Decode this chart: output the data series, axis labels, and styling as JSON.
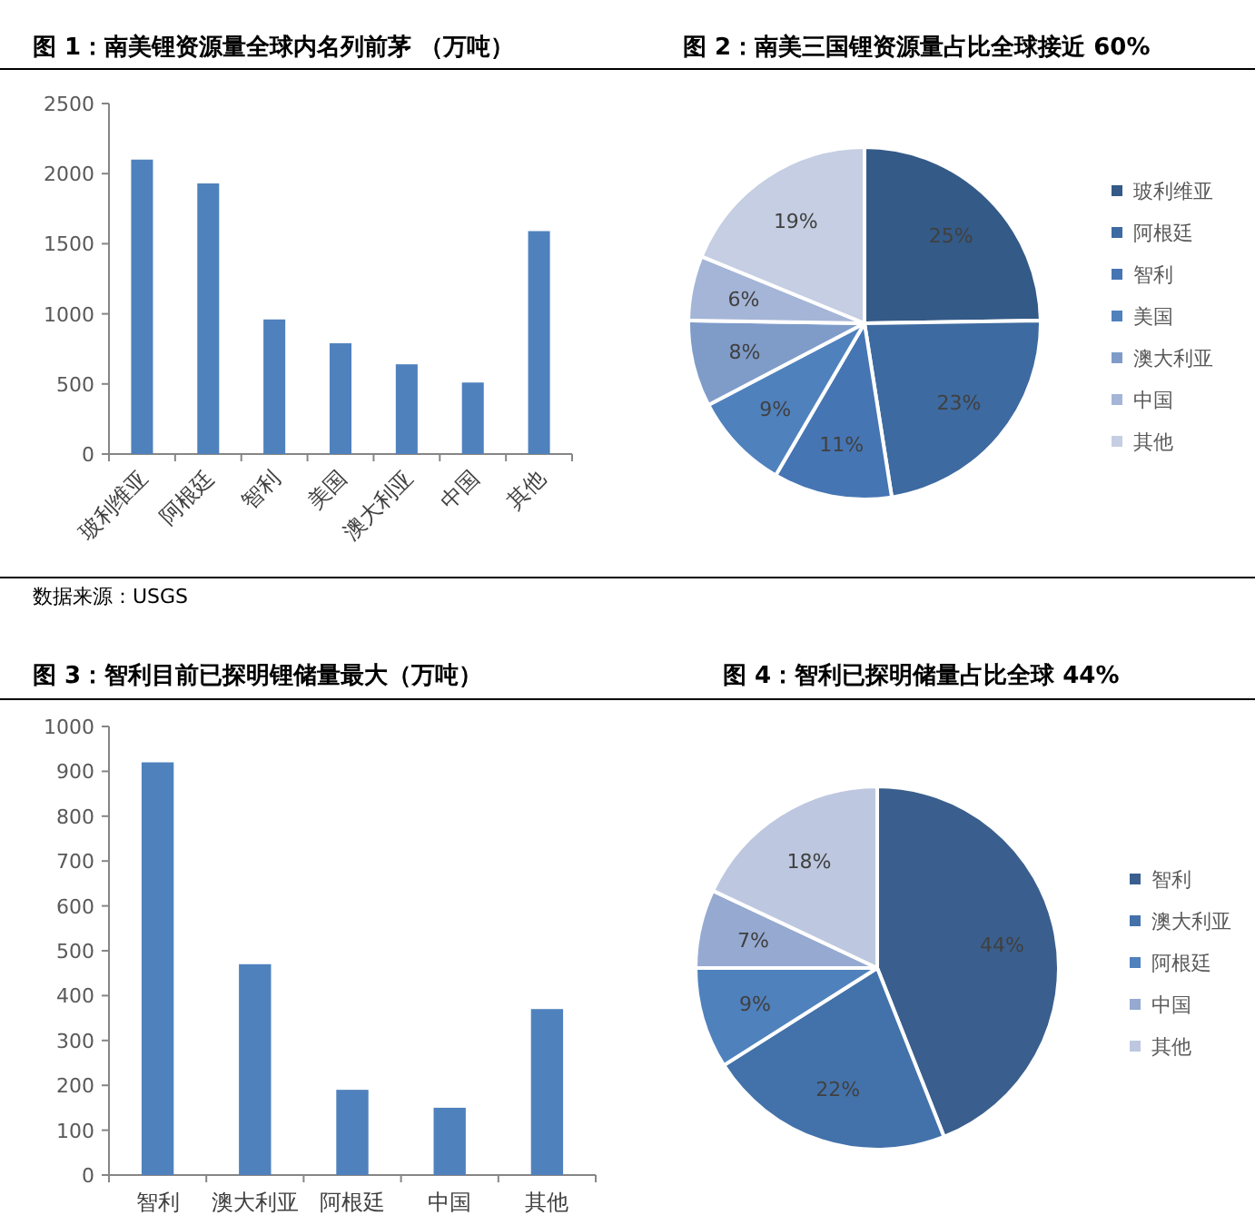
{
  "chart_data": [
    {
      "type": "bar",
      "title": "图 1：南美锂资源量全球内名列前茅 （万吨）",
      "categories": [
        "玻利维亚",
        "阿根廷",
        "智利",
        "美国",
        "澳大利亚",
        "中国",
        "其他"
      ],
      "values": [
        2100,
        1930,
        960,
        790,
        640,
        510,
        1590
      ],
      "color": "#4f81bd",
      "ylim": [
        0,
        2500
      ],
      "yticks": [
        0,
        500,
        1000,
        1500,
        2000,
        2500
      ],
      "annotations": [
        "数据来源：USGS"
      ]
    },
    {
      "type": "pie",
      "title": "图 2：南美三国锂资源量占比全球接近 60%",
      "categories": [
        "玻利维亚",
        "阿根廷",
        "智利",
        "美国",
        "澳大利亚",
        "中国",
        "其他"
      ],
      "values": [
        25,
        23,
        11,
        9,
        8,
        6,
        19
      ],
      "value_labels": [
        "25%",
        "23%",
        "11%",
        "9%",
        "8%",
        "6%",
        "19%"
      ],
      "colors": [
        "#345a87",
        "#3d6aa0",
        "#4675b3",
        "#4f81bd",
        "#7f9cc9",
        "#a5b5d7",
        "#c5cee2"
      ],
      "legend": "right"
    },
    {
      "type": "bar",
      "title": "图 3：智利目前已探明锂储量最大（万吨）",
      "categories": [
        "智利",
        "澳大利亚",
        "阿根廷",
        "中国",
        "其他"
      ],
      "values": [
        920,
        470,
        190,
        150,
        370
      ],
      "color": "#4f81bd",
      "ylim": [
        0,
        1000
      ],
      "yticks": [
        0,
        100,
        200,
        300,
        400,
        500,
        600,
        700,
        800,
        900,
        1000
      ]
    },
    {
      "type": "pie",
      "title": "图 4：智利已探明储量占比全球 44%",
      "categories": [
        "智利",
        "澳大利亚",
        "阿根廷",
        "中国",
        "其他"
      ],
      "values": [
        44,
        22,
        9,
        7,
        18
      ],
      "value_labels": [
        "44%",
        "22%",
        "9%",
        "7%",
        "18%"
      ],
      "colors": [
        "#3a5f8e",
        "#4372aa",
        "#4f81bd",
        "#95a9d1",
        "#bdc8e0"
      ],
      "legend": "right"
    }
  ]
}
